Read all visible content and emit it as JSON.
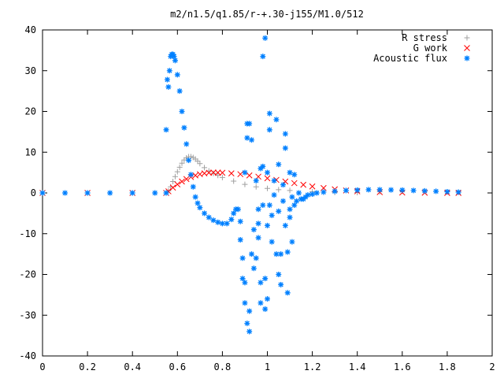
{
  "chart_data": {
    "type": "scatter",
    "title": "m2/n1.5/q1.85/r-+.30-j155/M1.0/512",
    "xlabel": "",
    "ylabel": "",
    "xlim": [
      0,
      2
    ],
    "ylim": [
      -40,
      40
    ],
    "xticks": [
      "0",
      "0.2",
      "0.4",
      "0.6",
      "0.8",
      "1",
      "1.2",
      "1.4",
      "1.6",
      "1.8",
      "2"
    ],
    "yticks": [
      "40",
      "30",
      "20",
      "10",
      "0",
      "-10",
      "-20",
      "-30",
      "-40"
    ],
    "grid": false,
    "legend_position": "top-right",
    "series": [
      {
        "name": "R stress",
        "marker": "plus",
        "color": "#a0a0a0",
        "points": [
          [
            0.0,
            0
          ],
          [
            0.1,
            0
          ],
          [
            0.2,
            0
          ],
          [
            0.3,
            0
          ],
          [
            0.4,
            0
          ],
          [
            0.5,
            0
          ],
          [
            0.55,
            0
          ],
          [
            0.56,
            0.5
          ],
          [
            0.57,
            1.5
          ],
          [
            0.58,
            2.8
          ],
          [
            0.59,
            4
          ],
          [
            0.6,
            5.2
          ],
          [
            0.61,
            6.3
          ],
          [
            0.62,
            7.3
          ],
          [
            0.63,
            8.1
          ],
          [
            0.64,
            8.6
          ],
          [
            0.65,
            8.9
          ],
          [
            0.66,
            8.9
          ],
          [
            0.67,
            8.7
          ],
          [
            0.68,
            8.3
          ],
          [
            0.69,
            7.8
          ],
          [
            0.7,
            7.2
          ],
          [
            0.72,
            6.2
          ],
          [
            0.74,
            5.4
          ],
          [
            0.76,
            4.8
          ],
          [
            0.78,
            4.3
          ],
          [
            0.8,
            3.8
          ],
          [
            0.85,
            2.9
          ],
          [
            0.9,
            2.1
          ],
          [
            0.95,
            1.5
          ],
          [
            1.0,
            1.1
          ],
          [
            1.05,
            0.8
          ],
          [
            1.1,
            0.6
          ],
          [
            1.2,
            0.3
          ],
          [
            1.3,
            0.15
          ],
          [
            1.4,
            0.1
          ],
          [
            1.5,
            0.3
          ],
          [
            1.6,
            0.4
          ],
          [
            1.7,
            0.4
          ],
          [
            1.8,
            0.3
          ],
          [
            1.85,
            0.2
          ]
        ]
      },
      {
        "name": "G work",
        "marker": "cross",
        "color": "#ff0000",
        "points": [
          [
            0.0,
            0
          ],
          [
            0.2,
            0
          ],
          [
            0.4,
            0
          ],
          [
            0.55,
            0
          ],
          [
            0.56,
            0.4
          ],
          [
            0.58,
            1.3
          ],
          [
            0.6,
            2.1
          ],
          [
            0.62,
            2.8
          ],
          [
            0.64,
            3.4
          ],
          [
            0.66,
            3.9
          ],
          [
            0.68,
            4.3
          ],
          [
            0.7,
            4.6
          ],
          [
            0.72,
            4.8
          ],
          [
            0.74,
            4.95
          ],
          [
            0.76,
            5.0
          ],
          [
            0.78,
            5.0
          ],
          [
            0.8,
            4.95
          ],
          [
            0.84,
            4.8
          ],
          [
            0.88,
            4.6
          ],
          [
            0.92,
            4.3
          ],
          [
            0.96,
            4.0
          ],
          [
            1.0,
            3.6
          ],
          [
            1.04,
            3.2
          ],
          [
            1.08,
            2.8
          ],
          [
            1.12,
            2.4
          ],
          [
            1.16,
            2.0
          ],
          [
            1.2,
            1.6
          ],
          [
            1.25,
            1.2
          ],
          [
            1.3,
            0.9
          ],
          [
            1.35,
            0.6
          ],
          [
            1.4,
            0.4
          ],
          [
            1.5,
            0.2
          ],
          [
            1.6,
            0.1
          ],
          [
            1.7,
            0.05
          ],
          [
            1.8,
            0.0
          ],
          [
            1.85,
            0.0
          ]
        ]
      },
      {
        "name": "Acoustic flux",
        "marker": "star",
        "color": "#0080ff",
        "points": [
          [
            0.0,
            0
          ],
          [
            0.1,
            0
          ],
          [
            0.2,
            0
          ],
          [
            0.3,
            0
          ],
          [
            0.4,
            0
          ],
          [
            0.5,
            0
          ],
          [
            0.55,
            0
          ],
          [
            0.55,
            15.5
          ],
          [
            0.555,
            27.8
          ],
          [
            0.56,
            26
          ],
          [
            0.565,
            30
          ],
          [
            0.57,
            33.5
          ],
          [
            0.575,
            34
          ],
          [
            0.58,
            34
          ],
          [
            0.585,
            33.5
          ],
          [
            0.59,
            32.5
          ],
          [
            0.6,
            29
          ],
          [
            0.61,
            25
          ],
          [
            0.62,
            20
          ],
          [
            0.63,
            16
          ],
          [
            0.64,
            12
          ],
          [
            0.65,
            8
          ],
          [
            0.66,
            4.5
          ],
          [
            0.67,
            1.5
          ],
          [
            0.68,
            -1
          ],
          [
            0.69,
            -2.5
          ],
          [
            0.7,
            -3.6
          ],
          [
            0.72,
            -5
          ],
          [
            0.74,
            -6
          ],
          [
            0.76,
            -6.7
          ],
          [
            0.78,
            -7.2
          ],
          [
            0.8,
            -7.5
          ],
          [
            0.82,
            -7.5
          ],
          [
            0.84,
            -6.5
          ],
          [
            0.85,
            -5
          ],
          [
            0.86,
            -4
          ],
          [
            0.87,
            -4
          ],
          [
            0.88,
            -7
          ],
          [
            0.88,
            -11.5
          ],
          [
            0.89,
            -16
          ],
          [
            0.89,
            -21
          ],
          [
            0.9,
            -22
          ],
          [
            0.9,
            5
          ],
          [
            0.9,
            -27
          ],
          [
            0.91,
            13.5
          ],
          [
            0.91,
            17
          ],
          [
            0.91,
            -32
          ],
          [
            0.92,
            -34
          ],
          [
            0.92,
            -29
          ],
          [
            0.92,
            17
          ],
          [
            0.93,
            13
          ],
          [
            0.93,
            -15
          ],
          [
            0.94,
            -9
          ],
          [
            0.94,
            -18.5
          ],
          [
            0.95,
            -16
          ],
          [
            0.95,
            3
          ],
          [
            0.96,
            -4
          ],
          [
            0.96,
            -7.5
          ],
          [
            0.96,
            -11
          ],
          [
            0.97,
            -22
          ],
          [
            0.97,
            -27
          ],
          [
            0.97,
            6
          ],
          [
            0.98,
            33.5
          ],
          [
            0.98,
            6.5
          ],
          [
            0.98,
            -3
          ],
          [
            0.99,
            38
          ],
          [
            0.99,
            -21
          ],
          [
            0.99,
            -28.5
          ],
          [
            1.0,
            -8
          ],
          [
            1.0,
            5
          ],
          [
            1.0,
            -26
          ],
          [
            1.01,
            19.5
          ],
          [
            1.01,
            15.5
          ],
          [
            1.01,
            -3
          ],
          [
            1.02,
            -5.5
          ],
          [
            1.02,
            -12
          ],
          [
            1.03,
            3
          ],
          [
            1.03,
            -0.5
          ],
          [
            1.04,
            18
          ],
          [
            1.04,
            -15
          ],
          [
            1.05,
            -20
          ],
          [
            1.05,
            7
          ],
          [
            1.05,
            -4.5
          ],
          [
            1.06,
            -22.5
          ],
          [
            1.06,
            -15
          ],
          [
            1.07,
            2
          ],
          [
            1.07,
            -2
          ],
          [
            1.08,
            14.5
          ],
          [
            1.08,
            11
          ],
          [
            1.08,
            -8
          ],
          [
            1.09,
            -24.5
          ],
          [
            1.09,
            -14.5
          ],
          [
            1.1,
            5
          ],
          [
            1.1,
            -6
          ],
          [
            1.1,
            -4
          ],
          [
            1.11,
            -1
          ],
          [
            1.11,
            -12
          ],
          [
            1.12,
            4.5
          ],
          [
            1.12,
            -3
          ],
          [
            1.13,
            -2
          ],
          [
            1.14,
            0
          ],
          [
            1.15,
            -1.5
          ],
          [
            1.16,
            -1.5
          ],
          [
            1.17,
            -1
          ],
          [
            1.18,
            -0.5
          ],
          [
            1.2,
            -0.3
          ],
          [
            1.22,
            0
          ],
          [
            1.25,
            0.2
          ],
          [
            1.3,
            0.4
          ],
          [
            1.35,
            0.6
          ],
          [
            1.4,
            0.7
          ],
          [
            1.45,
            0.8
          ],
          [
            1.5,
            0.8
          ],
          [
            1.55,
            0.75
          ],
          [
            1.6,
            0.7
          ],
          [
            1.65,
            0.6
          ],
          [
            1.7,
            0.5
          ],
          [
            1.75,
            0.4
          ],
          [
            1.8,
            0.3
          ],
          [
            1.85,
            0.2
          ]
        ]
      }
    ]
  }
}
